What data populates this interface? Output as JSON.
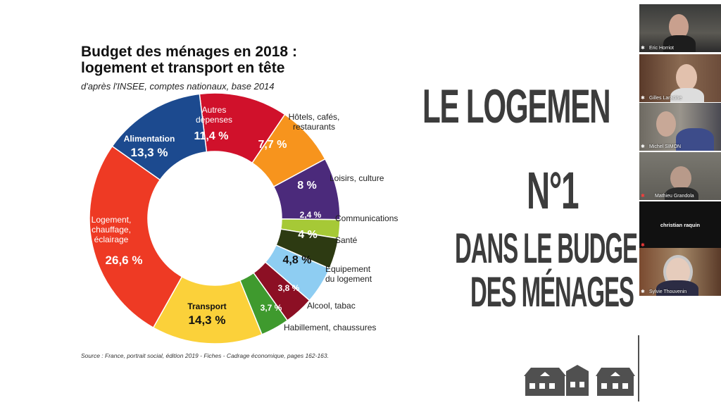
{
  "slide": {
    "title_line1": "Budget des ménages en 2018 :",
    "title_line2": "logement et transport en tête",
    "subtitle": "d'après l'INSEE, comptes nationaux, base 2014",
    "source": "Source : France, portrait social, édition 2019 - Fiches - Cadrage économique, pages 162-163.",
    "big_text": [
      "LE LOGEMEN",
      "N°1",
      "DANS LE BUDGE",
      "DES MÉNAGES"
    ]
  },
  "chart_data": {
    "type": "pie",
    "variant": "donut",
    "title": "Budget des ménages en 2018 : logement et transport en tête",
    "subtitle": "d'après l'INSEE, comptes nationaux, base 2014",
    "slices": [
      {
        "category": "Autres dépenses",
        "value": 11.4,
        "label": "11,4 %",
        "color": "#d0112b"
      },
      {
        "category": "Hôtels, cafés, restaurants",
        "value": 7.7,
        "label": "7,7 %",
        "color": "#f7941d"
      },
      {
        "category": "Loisirs, culture",
        "value": 8,
        "label": "8 %",
        "color": "#4b2a7b"
      },
      {
        "category": "Communications",
        "value": 2.4,
        "label": "2,4 %",
        "color": "#a6c936"
      },
      {
        "category": "Santé",
        "value": 4,
        "label": "4 %",
        "color": "#2d3a12"
      },
      {
        "category": "Equipement du logement",
        "value": 4.8,
        "label": "4,8 %",
        "color": "#8ecdf2"
      },
      {
        "category": "Alcool, tabac",
        "value": 3.8,
        "label": "3,8 %",
        "color": "#8c0f24"
      },
      {
        "category": "Habillement, chaussures",
        "value": 3.7,
        "label": "3,7 %",
        "color": "#3f9a2e"
      },
      {
        "category": "Transport",
        "value": 14.3,
        "label": "14,3 %",
        "color": "#fbd13a"
      },
      {
        "category": "Logement, chauffage, éclairage",
        "value": 26.6,
        "label": "26,6 %",
        "color": "#ee3a24"
      },
      {
        "category": "Alimentation",
        "value": 13.3,
        "label": "13,3 %",
        "color": "#1c4a8f"
      }
    ]
  },
  "participants": [
    {
      "name": "Eric Horriot",
      "muted": false
    },
    {
      "name": "Gilles Laracine",
      "muted": false
    },
    {
      "name": "Michel SIMON",
      "muted": false
    },
    {
      "name": "Mathieu Grandola",
      "muted": true
    },
    {
      "name": "christian raquin",
      "muted": true
    },
    {
      "name": "Sylvie Thouvenin",
      "muted": false
    }
  ],
  "colors": {
    "big_text": "#3c3c3c",
    "building": "#505050"
  }
}
